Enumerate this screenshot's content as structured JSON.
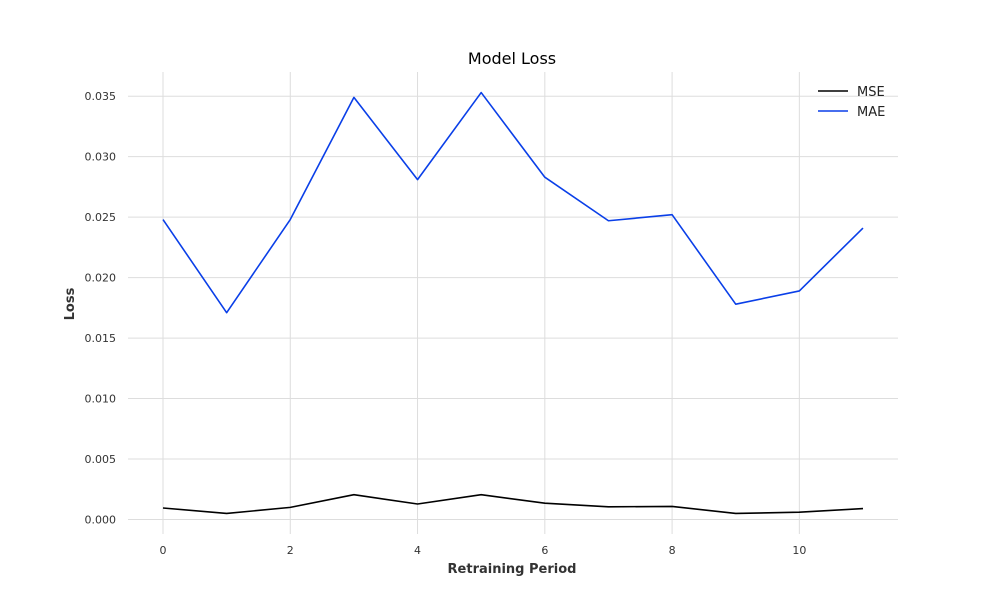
{
  "chart_data": {
    "type": "line",
    "title": "Model Loss",
    "xlabel": "Retraining Period",
    "ylabel": "Loss",
    "x": [
      0,
      1,
      2,
      3,
      4,
      5,
      6,
      7,
      8,
      9,
      10,
      11
    ],
    "xlim": [
      -0.55,
      11.55
    ],
    "ylim": [
      -0.0012,
      0.037
    ],
    "xticks": [
      0,
      2,
      4,
      6,
      8,
      10
    ],
    "yticks": [
      0.0,
      0.005,
      0.01,
      0.015,
      0.02,
      0.025,
      0.03,
      0.035
    ],
    "ytick_labels": [
      "0.000",
      "0.005",
      "0.010",
      "0.015",
      "0.020",
      "0.025",
      "0.030",
      "0.035"
    ],
    "grid": true,
    "legend_position": "top-right",
    "series": [
      {
        "name": "MSE",
        "color": "#000000",
        "values": [
          0.00095,
          0.0005,
          0.001,
          0.00205,
          0.00128,
          0.00205,
          0.00135,
          0.00105,
          0.00108,
          0.0005,
          0.0006,
          0.0009
        ]
      },
      {
        "name": "MAE",
        "color": "#0a3fe8",
        "values": [
          0.0248,
          0.0171,
          0.0248,
          0.0349,
          0.0281,
          0.0353,
          0.0283,
          0.0247,
          0.0252,
          0.0178,
          0.0189,
          0.0241
        ]
      }
    ]
  }
}
